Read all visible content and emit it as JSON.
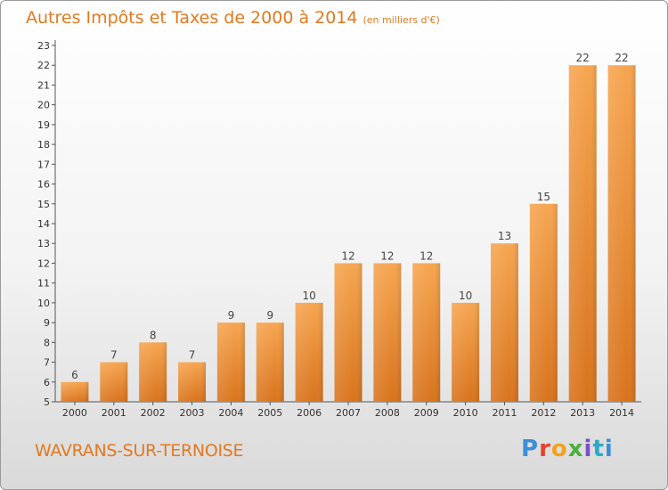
{
  "chart_data": {
    "type": "bar",
    "title": "Autres Impôts et Taxes de 2000 à 2014",
    "subtitle": "(en milliers d'€)",
    "categories": [
      "2000",
      "2001",
      "2002",
      "2003",
      "2004",
      "2005",
      "2006",
      "2007",
      "2008",
      "2009",
      "2010",
      "2011",
      "2012",
      "2013",
      "2014"
    ],
    "values": [
      6,
      7,
      8,
      7,
      9,
      9,
      10,
      12,
      12,
      12,
      10,
      13,
      15,
      22,
      22
    ],
    "ylim": [
      5,
      23
    ],
    "yticks": [
      5,
      6,
      7,
      8,
      9,
      10,
      11,
      12,
      13,
      14,
      15,
      16,
      17,
      18,
      19,
      20,
      21,
      22,
      23
    ],
    "xlabel": "",
    "ylabel": "",
    "grid": false,
    "bar_color": "#f08a2a"
  },
  "footer": {
    "commune": "WAVRANS-SUR-TERNOISE",
    "logo": "Proxiti"
  }
}
